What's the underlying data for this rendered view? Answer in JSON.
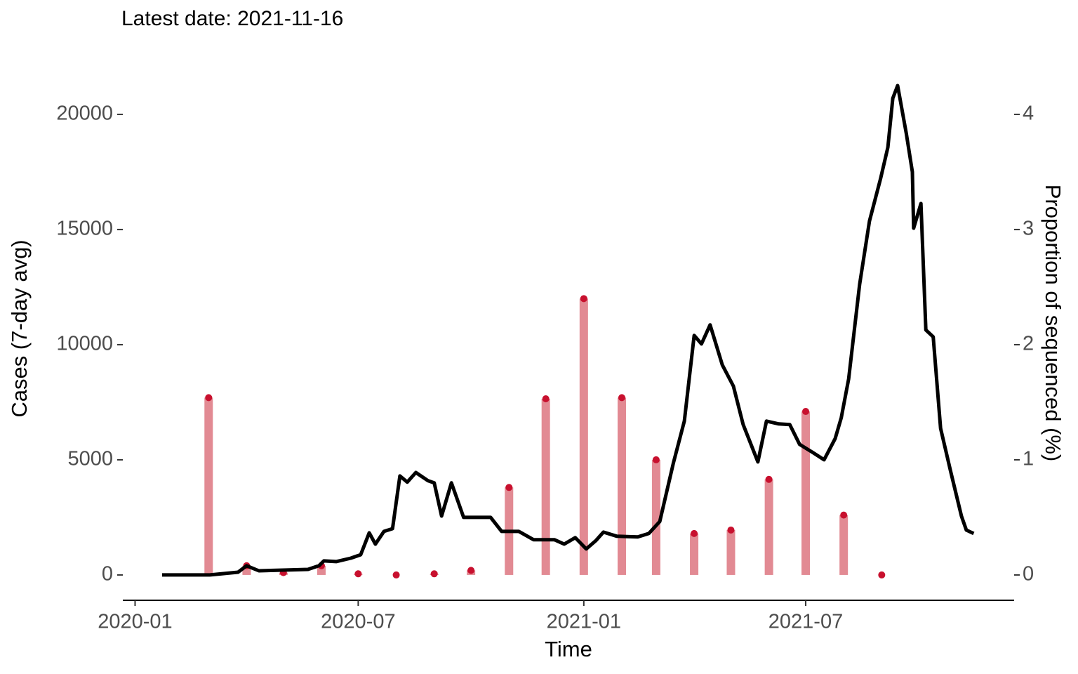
{
  "chart_data": {
    "type": "line",
    "title": "Latest date: 2021-11-16",
    "x_label": "Time",
    "y_label": "Cases (7-day avg)",
    "y2_label": "Proportion of sequenced (%)",
    "xlim": [
      "2019-12-22",
      "2021-12-18"
    ],
    "xticks": [
      {
        "value": "2020-01-01",
        "label": "2020-01"
      },
      {
        "value": "2020-07-01",
        "label": "2020-07"
      },
      {
        "value": "2021-01-01",
        "label": "2021-01"
      },
      {
        "value": "2021-07-01",
        "label": "2021-07"
      }
    ],
    "ylim": [
      -1100,
      22300
    ],
    "yticks": [
      0,
      5000,
      10000,
      15000,
      20000
    ],
    "y2lim": [
      -0.22,
      4.46
    ],
    "y2ticks": [
      0,
      1,
      2,
      3,
      4
    ],
    "series": [
      {
        "type": "bar",
        "axis": "y2",
        "color": "#e28a93",
        "point_color": "#c8102e",
        "x": [
          "2020-03",
          "2020-04",
          "2020-05",
          "2020-06",
          "2020-07",
          "2020-08",
          "2020-09",
          "2020-10",
          "2020-11",
          "2020-12",
          "2021-01",
          "2021-02",
          "2021-03",
          "2021-04",
          "2021-05",
          "2021-06",
          "2021-07",
          "2021-08",
          "2021-09"
        ],
        "values": [
          1.54,
          0.08,
          0.02,
          0.08,
          0.01,
          0.0,
          0.01,
          0.04,
          0.76,
          1.53,
          2.4,
          1.54,
          1.0,
          0.36,
          0.39,
          0.83,
          1.42,
          0.52,
          0.0
        ]
      },
      {
        "type": "line",
        "color": "#000000",
        "x": [
          "2020-01-23",
          "2020-03-02",
          "2020-03-25",
          "2020-04-01",
          "2020-04-11",
          "2020-05-01",
          "2020-05-21",
          "2020-05-30",
          "2020-06-03",
          "2020-06-13",
          "2020-06-25",
          "2020-07-03",
          "2020-07-10",
          "2020-07-15",
          "2020-07-22",
          "2020-07-29",
          "2020-08-04",
          "2020-08-10",
          "2020-08-17",
          "2020-08-27",
          "2020-09-01",
          "2020-09-07",
          "2020-09-15",
          "2020-09-25",
          "2020-10-17",
          "2020-10-26",
          "2020-11-09",
          "2020-11-21",
          "2020-12-08",
          "2020-12-16",
          "2020-12-25",
          "2021-01-03",
          "2021-01-11",
          "2021-01-17",
          "2021-01-28",
          "2021-02-14",
          "2021-02-23",
          "2021-03-04",
          "2021-03-15",
          "2021-03-24",
          "2021-04-01",
          "2021-04-07",
          "2021-04-14",
          "2021-04-24",
          "2021-05-03",
          "2021-05-11",
          "2021-05-23",
          "2021-05-30",
          "2021-06-09",
          "2021-06-18",
          "2021-06-26",
          "2021-07-07",
          "2021-07-16",
          "2021-07-25",
          "2021-07-30",
          "2021-08-05",
          "2021-08-14",
          "2021-08-22",
          "2021-08-31",
          "2021-09-06",
          "2021-09-10",
          "2021-09-14",
          "2021-09-21",
          "2021-09-26",
          "2021-09-27",
          "2021-10-03",
          "2021-10-07",
          "2021-10-13",
          "2021-10-19",
          "2021-10-27",
          "2021-11-05",
          "2021-11-09",
          "2021-11-15"
        ],
        "values": [
          0,
          0,
          120,
          400,
          180,
          210,
          240,
          400,
          610,
          580,
          730,
          880,
          1830,
          1340,
          1890,
          2010,
          4300,
          4030,
          4450,
          4090,
          4000,
          2560,
          4000,
          2500,
          2500,
          1890,
          1890,
          1530,
          1530,
          1340,
          1620,
          1130,
          1500,
          1860,
          1680,
          1650,
          1800,
          2320,
          4850,
          6680,
          10400,
          10030,
          10860,
          9120,
          8200,
          6530,
          4910,
          6680,
          6560,
          6530,
          5670,
          5310,
          5000,
          5920,
          6830,
          8510,
          12630,
          15370,
          17200,
          18570,
          20700,
          21250,
          19180,
          17500,
          15060,
          16130,
          10640,
          10340,
          6370,
          4540,
          2560,
          1950,
          1800
        ]
      }
    ]
  }
}
